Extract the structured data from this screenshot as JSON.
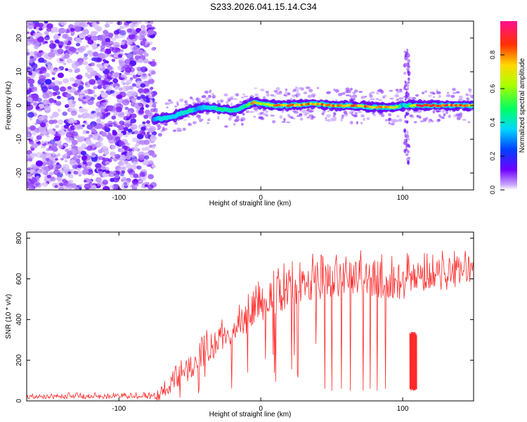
{
  "title": "S233.2026.041.15.14.C34",
  "chart_data": [
    {
      "type": "heatmap",
      "name": "spectrogram",
      "xlabel": "Height of straight line (km)",
      "ylabel": "Frequency (Hz)",
      "xlim": [
        -165,
        150
      ],
      "ylim": [
        -25,
        25
      ],
      "xticks": [
        -100,
        0,
        100
      ],
      "yticks": [
        -20,
        -10,
        0,
        10,
        20
      ],
      "colorbar": {
        "label": "Normalized spectral amplitude",
        "range": [
          0,
          1
        ],
        "ticks": [
          0.0,
          0.2,
          0.4,
          0.6,
          0.8
        ]
      },
      "noise_region_x": [
        -165,
        -75
      ],
      "ridge": {
        "x": [
          -75,
          -70,
          -60,
          -50,
          -45,
          -40,
          -30,
          -20,
          -15,
          -10,
          -5,
          0,
          10,
          20,
          30,
          40,
          50,
          60,
          70,
          80,
          90,
          95,
          100,
          110,
          120,
          130,
          140,
          150
        ],
        "frequency": [
          -4,
          -4,
          -3,
          -1.5,
          -1,
          -0.5,
          -1,
          -1.5,
          -1,
          0,
          1,
          0.5,
          0,
          0,
          0.3,
          0.5,
          0,
          0,
          -0.2,
          -0.5,
          -0.5,
          -0.5,
          0,
          0,
          0,
          0,
          0,
          0
        ],
        "amplitude": [
          0.3,
          0.4,
          0.35,
          0.45,
          0.3,
          0.35,
          0.45,
          0.5,
          0.4,
          0.55,
          0.85,
          0.7,
          0.8,
          0.85,
          0.8,
          0.85,
          0.8,
          0.85,
          0.85,
          0.85,
          0.8,
          0.75,
          0.3,
          0.9,
          0.9,
          0.9,
          0.9,
          0.85
        ]
      },
      "vertical_feature_x": 103
    },
    {
      "type": "line",
      "name": "snr",
      "xlabel": "Height of straight line (km)",
      "ylabel": "SNR (10 * v/v)",
      "xlim": [
        -165,
        150
      ],
      "ylim": [
        0,
        830
      ],
      "xticks": [
        -100,
        0,
        100
      ],
      "yticks": [
        0,
        200,
        400,
        600,
        800
      ],
      "color": "#ff2a2a",
      "envelope": {
        "x": [
          -165,
          -100,
          -75,
          -65,
          -60,
          -50,
          -40,
          -30,
          -20,
          -10,
          0,
          10,
          20,
          30,
          40,
          50,
          60,
          70,
          80,
          90,
          100,
          110,
          120,
          130,
          140,
          150
        ],
        "low": [
          10,
          10,
          10,
          30,
          60,
          100,
          170,
          230,
          280,
          320,
          380,
          430,
          450,
          470,
          490,
          500,
          520,
          520,
          510,
          500,
          500,
          520,
          540,
          540,
          550,
          560
        ],
        "high": [
          40,
          40,
          40,
          120,
          180,
          250,
          330,
          400,
          450,
          520,
          600,
          650,
          680,
          700,
          720,
          720,
          720,
          730,
          740,
          720,
          720,
          720,
          740,
          740,
          760,
          760
        ]
      },
      "dips": [
        {
          "x": 45,
          "value": 60
        },
        {
          "x": 50,
          "value": 50
        },
        {
          "x": 57,
          "value": 60
        },
        {
          "x": 63,
          "value": 50
        },
        {
          "x": 72,
          "value": 50
        },
        {
          "x": 77,
          "value": 60
        },
        {
          "x": 82,
          "value": 50
        },
        {
          "x": 88,
          "value": 60
        }
      ],
      "dense_band": {
        "x": [
          105,
          110
        ],
        "low": 50,
        "high": 340
      }
    }
  ]
}
